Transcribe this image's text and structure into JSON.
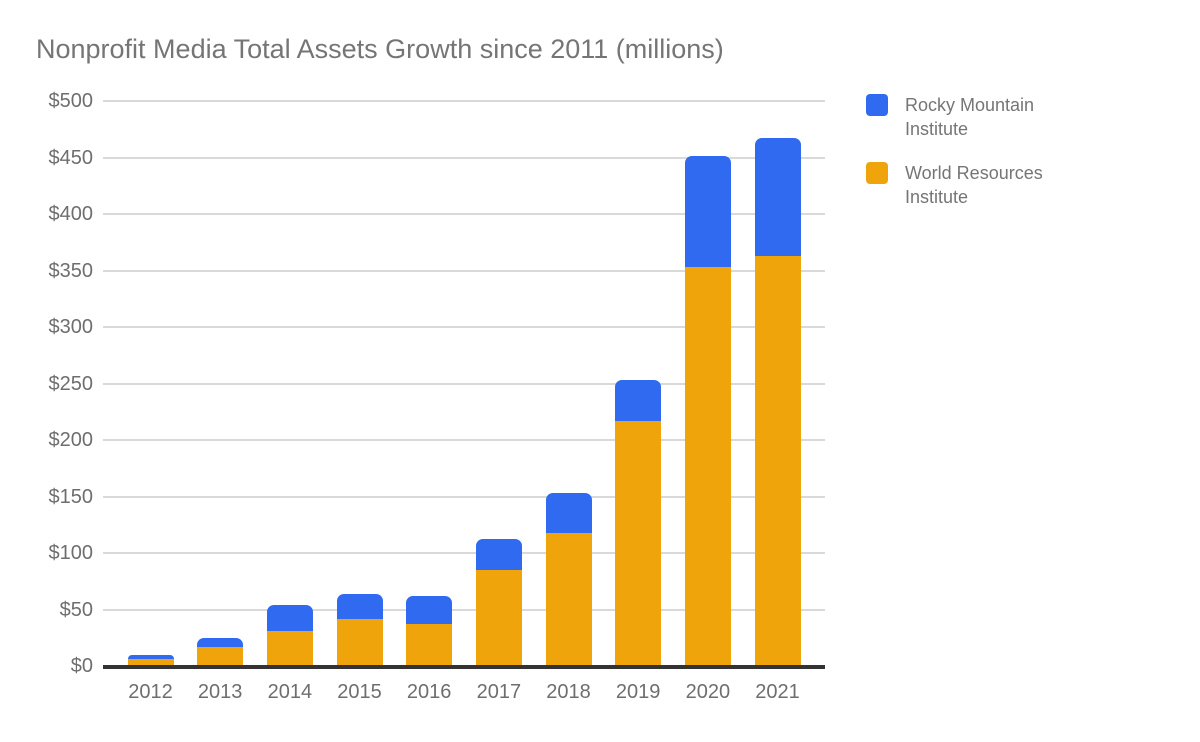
{
  "chart_data": {
    "type": "bar",
    "stacked": true,
    "title": "Nonprofit Media Total Assets Growth since 2011 (millions)",
    "categories": [
      "2012",
      "2013",
      "2014",
      "2015",
      "2016",
      "2017",
      "2018",
      "2019",
      "2020",
      "2021"
    ],
    "series": [
      {
        "name": "World Resources Institute",
        "color": "#F0A40C",
        "values": [
          6,
          17,
          31,
          42,
          37,
          85,
          118,
          217,
          353,
          363
        ]
      },
      {
        "name": "Rocky Mountain Institute",
        "color": "#2F6AF1",
        "values": [
          4,
          8,
          23,
          22,
          25,
          27,
          35,
          36,
          98,
          104
        ]
      }
    ],
    "legend": [
      {
        "label": "Rocky Mountain Institute",
        "color": "#2F6AF1"
      },
      {
        "label": "World Resources Institute",
        "color": "#F0A40C"
      }
    ],
    "legend_position": "top-right",
    "xlabel": "",
    "ylabel": "",
    "ylim": [
      0,
      500
    ],
    "yticks": [
      0,
      50,
      100,
      150,
      200,
      250,
      300,
      350,
      400,
      450,
      500
    ],
    "ytick_labels": [
      "$0",
      "$50",
      "$100",
      "$150",
      "$200",
      "$250",
      "$300",
      "$350",
      "$400",
      "$450",
      "$500"
    ],
    "grid": true,
    "text_color": "#757575",
    "axis_line_color": "#333333",
    "gridline_color": "#d9d9d9",
    "background_color": "#ffffff"
  }
}
